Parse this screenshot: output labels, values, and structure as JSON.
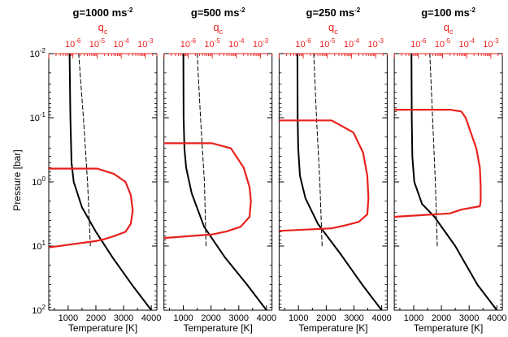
{
  "figure": {
    "ylabel": "Pressure [bar]",
    "xlabel": "Temperature [K]",
    "top_xlabel": "q",
    "top_xlabel_sub": "c",
    "colors": {
      "temperature": "#000000",
      "condensation": "#000000",
      "cloud": "#e8211d",
      "axis_top": "#e8211d"
    }
  },
  "chart_data": [
    {
      "type": "line",
      "title_prefix": "g=1000 ms",
      "title_sup": "-2",
      "xlabel": "Temperature [K]",
      "ylabel": "Pressure [bar]",
      "top_xlabel": "q_c",
      "xlim": [
        300,
        4200
      ],
      "ylim": [
        100,
        0.01
      ],
      "y_scale": "log",
      "top_xlim": [
        1e-07,
        0.003
      ],
      "top_x_scale": "log",
      "x_ticks": [
        "1000",
        "2000",
        "3000",
        "4000"
      ],
      "y_ticks": [
        "10^2",
        "10^1",
        "10^0",
        "10^-1",
        "10^-2"
      ],
      "top_ticks": [
        "10^-6",
        "10^-5",
        "10^-4",
        "10^-3"
      ],
      "series": [
        {
          "style": "solid-black",
          "x": [
            1050,
            1080,
            1120,
            1200,
            1500,
            2000,
            2600,
            3300,
            4000
          ],
          "y": [
            0.01,
            0.1,
            0.5,
            1,
            2.5,
            6,
            15,
            40,
            100
          ]
        },
        {
          "style": "dashed-black",
          "x": [
            1380,
            1550,
            1700,
            1800
          ],
          "y": [
            0.01,
            0.1,
            1,
            10
          ]
        },
        {
          "style": "solid-red",
          "q": [
            1e-07,
            1e-05,
            5e-05,
            0.00015,
            0.00025,
            0.0003,
            0.00025,
            0.00015,
            5e-05,
            2e-05,
            1e-05,
            1e-07
          ],
          "y": [
            0.62,
            0.62,
            0.75,
            1.0,
            1.6,
            2.8,
            4.5,
            6.0,
            7.0,
            7.8,
            8.3,
            10.5
          ]
        }
      ]
    },
    {
      "type": "line",
      "title_prefix": "g=500 ms",
      "title_sup": "-2",
      "xlabel": "Temperature [K]",
      "xlim": [
        300,
        4200
      ],
      "ylim": [
        100,
        0.01
      ],
      "y_scale": "log",
      "top_xlim": [
        1e-07,
        0.003
      ],
      "top_x_scale": "log",
      "x_ticks": [
        "1000",
        "2000",
        "3000",
        "4000"
      ],
      "top_ticks": [
        "10^-6",
        "10^-5",
        "10^-4",
        "10^-3"
      ],
      "series": [
        {
          "style": "solid-black",
          "x": [
            1000,
            1010,
            1040,
            1100,
            1300,
            1750,
            2500,
            3300,
            4000
          ],
          "y": [
            0.01,
            0.1,
            0.3,
            0.6,
            1.5,
            5,
            15,
            40,
            100
          ]
        },
        {
          "style": "dashed-black",
          "x": [
            1500,
            1620,
            1760,
            1820
          ],
          "y": [
            0.01,
            0.1,
            1,
            10
          ]
        },
        {
          "style": "solid-red",
          "q": [
            1e-07,
            1e-05,
            6e-05,
            0.0002,
            0.00035,
            0.0004,
            0.00035,
            0.00015,
            4e-05,
            1e-05,
            1e-07
          ],
          "y": [
            0.25,
            0.25,
            0.3,
            0.6,
            1.2,
            2.0,
            3.5,
            5.0,
            5.9,
            6.6,
            7.5
          ]
        }
      ]
    },
    {
      "type": "line",
      "title_prefix": "g=250 ms",
      "title_sup": "-2",
      "xlabel": "Temperature [K]",
      "xlim": [
        300,
        4200
      ],
      "ylim": [
        100,
        0.01
      ],
      "y_scale": "log",
      "top_xlim": [
        1e-07,
        0.003
      ],
      "top_x_scale": "log",
      "x_ticks": [
        "1000",
        "2000",
        "3000",
        "4000"
      ],
      "top_ticks": [
        "10^-6",
        "10^-5",
        "10^-4",
        "10^-3"
      ],
      "series": [
        {
          "style": "solid-black",
          "x": [
            960,
            970,
            990,
            1050,
            1250,
            1700,
            2500,
            3300,
            4000
          ],
          "y": [
            0.01,
            0.1,
            0.3,
            0.8,
            1.8,
            4.5,
            13,
            40,
            100
          ]
        },
        {
          "style": "dashed-black",
          "x": [
            1550,
            1650,
            1770,
            1850
          ],
          "y": [
            0.01,
            0.1,
            1,
            10
          ]
        },
        {
          "style": "solid-red",
          "q": [
            1e-07,
            1.5e-05,
            0.00012,
            0.0003,
            0.00045,
            0.0005,
            0.00045,
            0.0002,
            5e-05,
            1.5e-05,
            1e-07
          ],
          "y": [
            0.11,
            0.11,
            0.17,
            0.35,
            0.8,
            1.8,
            3.2,
            4.2,
            4.8,
            5.3,
            5.8
          ]
        }
      ]
    },
    {
      "type": "line",
      "title_prefix": "g=100 ms",
      "title_sup": "-2",
      "xlabel": "Temperature [K]",
      "xlim": [
        300,
        4200
      ],
      "ylim": [
        100,
        0.01
      ],
      "y_scale": "log",
      "top_xlim": [
        1e-07,
        0.003
      ],
      "top_x_scale": "log",
      "x_ticks": [
        "1000",
        "2000",
        "3000",
        "4000"
      ],
      "top_ticks": [
        "10^-6",
        "10^-5",
        "10^-4",
        "10^-3"
      ],
      "series": [
        {
          "style": "solid-black",
          "x": [
            920,
            930,
            950,
            1020,
            1300,
            1750,
            2500,
            3300,
            4000
          ],
          "y": [
            0.01,
            0.1,
            0.4,
            1.0,
            2.2,
            3.5,
            10,
            40,
            100
          ]
        },
        {
          "style": "dashed-black",
          "x": [
            1580,
            1680,
            1780,
            1850
          ],
          "y": [
            0.01,
            0.1,
            1,
            10
          ]
        },
        {
          "style": "solid-red",
          "q": [
            1e-07,
            2e-05,
            6e-05,
            9e-05,
            0.00025,
            0.00035,
            0.00038,
            0.00038,
            0.00035,
            6e-05,
            2e-05,
            1e-07
          ],
          "y": [
            0.075,
            0.075,
            0.08,
            0.1,
            0.3,
            0.6,
            1.2,
            2.0,
            2.4,
            2.7,
            3.1,
            3.5
          ]
        }
      ]
    }
  ]
}
